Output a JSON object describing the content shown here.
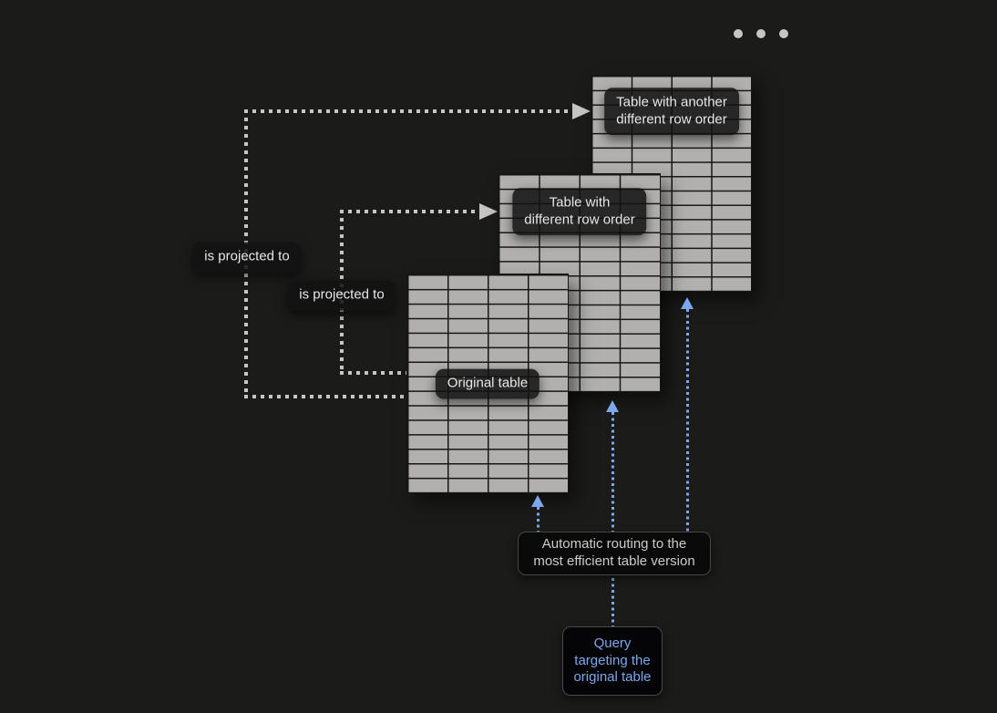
{
  "colors": {
    "background": "#1b1b1a",
    "table_fill": "#b1b0ae",
    "grid_line": "#161616",
    "dotted_gray": "#c7c6c4",
    "accent_blue": "#7da6ec",
    "tooltip_text": "#e8e8e8"
  },
  "menu": {
    "dots": 3
  },
  "diagram": {
    "tables": [
      {
        "name": "table-with-another-different-row-order",
        "label": "Table with another\ndifferent row order",
        "rows": 15,
        "cols": 4
      },
      {
        "name": "table-with-different-row-order",
        "label": "Table with\ndifferent row order",
        "rows": 15,
        "cols": 4
      },
      {
        "name": "original-table",
        "label": "Original table",
        "rows": 15,
        "cols": 4
      }
    ],
    "projection_edges": [
      {
        "label": "is projected to"
      },
      {
        "label": "is projected to"
      }
    ],
    "routing_note": "Automatic routing to the\nmost efficient table version",
    "query_box": "Query\ntargeting the\noriginal table"
  }
}
